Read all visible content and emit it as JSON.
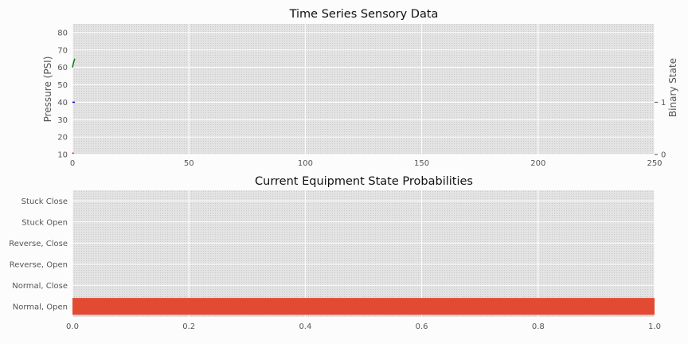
{
  "chart_data": [
    {
      "type": "line",
      "title": "Time Series Sensory Data",
      "xlabel": "",
      "ylabel": "Pressure (PSI)",
      "ylabel_right": "Binary State",
      "xlim": [
        0,
        250
      ],
      "ylim": [
        10,
        85
      ],
      "ylim_right": [
        0,
        2.5
      ],
      "x_ticks": [
        "0",
        "50",
        "100",
        "150",
        "200",
        "250"
      ],
      "y_ticks": [
        "10",
        "20",
        "30",
        "40",
        "50",
        "60",
        "70",
        "80"
      ],
      "y_ticks_right": [
        "0",
        "1"
      ],
      "grid": true,
      "series": [
        {
          "color": "#008000",
          "x": [
            0,
            0.5,
            1
          ],
          "y": [
            60,
            63,
            65
          ]
        },
        {
          "color": "#0000cc",
          "x": [
            0,
            1
          ],
          "y": [
            40,
            40
          ]
        },
        {
          "color": "#cc0000",
          "x": [
            0,
            0.5
          ],
          "y": [
            11,
            10.5
          ]
        }
      ]
    },
    {
      "type": "bar",
      "orientation": "horizontal",
      "title": "Current Equipment State Probabilities",
      "categories": [
        "Normal, Open",
        "Normal, Close",
        "Reverse, Open",
        "Reverse, Close",
        "Stuck Open",
        "Stuck Close"
      ],
      "values": [
        1.0,
        0,
        0,
        0,
        0,
        0
      ],
      "xlim": [
        0,
        1
      ],
      "x_ticks": [
        "0.0",
        "0.2",
        "0.4",
        "0.6",
        "0.8",
        "1.0"
      ],
      "bar_color": "#e24a33",
      "grid": true
    }
  ]
}
